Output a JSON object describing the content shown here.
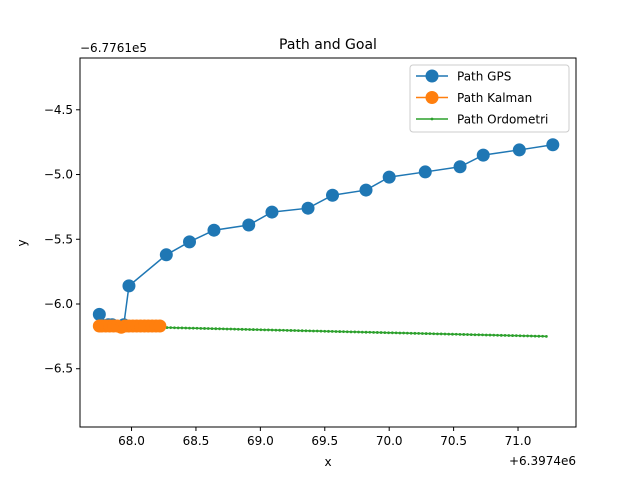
{
  "chart_data": {
    "type": "line",
    "title": "Path and Goal",
    "xlabel": "x",
    "ylabel": "y",
    "x_offset_label": "+6.3974e6",
    "y_offset_label": "−6.7761e5",
    "xlim": [
      67.6,
      71.45
    ],
    "ylim": [
      -6.95,
      -4.1
    ],
    "xticks": [
      {
        "value": 68.0,
        "label": "68.0"
      },
      {
        "value": 68.5,
        "label": "68.5"
      },
      {
        "value": 69.0,
        "label": "69.0"
      },
      {
        "value": 69.5,
        "label": "69.5"
      },
      {
        "value": 70.0,
        "label": "70.0"
      },
      {
        "value": 70.5,
        "label": "70.5"
      },
      {
        "value": 71.0,
        "label": "71.0"
      }
    ],
    "yticks": [
      {
        "value": -4.5,
        "label": "−4.5"
      },
      {
        "value": -5.0,
        "label": "−5.0"
      },
      {
        "value": -5.5,
        "label": "−5.5"
      },
      {
        "value": -6.0,
        "label": "−6.0"
      },
      {
        "value": -6.5,
        "label": "−6.5"
      }
    ],
    "legend_position": "top-right",
    "grid": false,
    "series": [
      {
        "name": "Path GPS",
        "color": "#1f77b4",
        "marker": "large-circle",
        "points": [
          [
            67.75,
            -6.08
          ],
          [
            67.82,
            -6.16
          ],
          [
            67.85,
            -6.16
          ],
          [
            67.94,
            -6.16
          ],
          [
            67.98,
            -5.86
          ],
          [
            68.27,
            -5.62
          ],
          [
            68.45,
            -5.52
          ],
          [
            68.64,
            -5.43
          ],
          [
            68.91,
            -5.39
          ],
          [
            69.09,
            -5.29
          ],
          [
            69.37,
            -5.26
          ],
          [
            69.56,
            -5.16
          ],
          [
            69.82,
            -5.12
          ],
          [
            70.0,
            -5.02
          ],
          [
            70.28,
            -4.98
          ],
          [
            70.55,
            -4.94
          ],
          [
            70.73,
            -4.85
          ],
          [
            71.01,
            -4.81
          ],
          [
            71.27,
            -4.77
          ]
        ]
      },
      {
        "name": "Path Kalman",
        "color": "#ff7f0e",
        "marker": "large-circle",
        "points": [
          [
            67.75,
            -6.17
          ],
          [
            67.77,
            -6.17
          ],
          [
            67.8,
            -6.17
          ],
          [
            67.83,
            -6.17
          ],
          [
            67.86,
            -6.17
          ],
          [
            67.89,
            -6.17
          ],
          [
            67.92,
            -6.18
          ],
          [
            67.95,
            -6.17
          ],
          [
            67.98,
            -6.17
          ],
          [
            68.01,
            -6.17
          ],
          [
            68.04,
            -6.17
          ],
          [
            68.07,
            -6.17
          ],
          [
            68.1,
            -6.17
          ],
          [
            68.13,
            -6.17
          ],
          [
            68.16,
            -6.17
          ],
          [
            68.19,
            -6.17
          ],
          [
            68.22,
            -6.17
          ]
        ]
      },
      {
        "name": "Path Ordometri",
        "color": "#2ca02c",
        "marker": "small-dot",
        "x_start": 67.75,
        "x_end": 71.22,
        "y_start": -6.17,
        "y_end": -6.25,
        "n_points": 120
      }
    ]
  }
}
